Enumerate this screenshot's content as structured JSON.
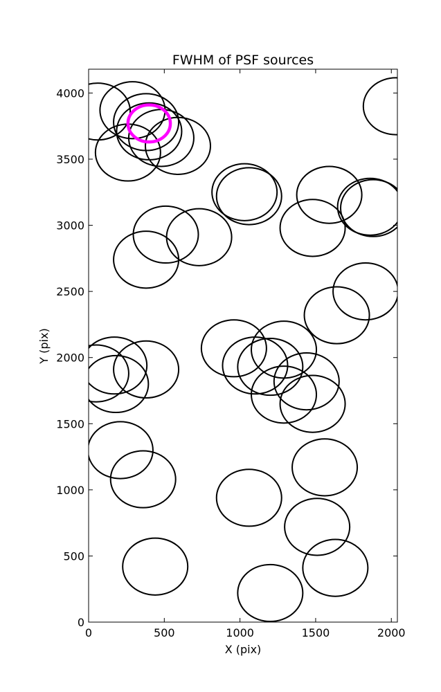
{
  "chart_data": {
    "type": "scatter",
    "title": "FWHM of PSF sources",
    "xlabel": "X (pix)",
    "ylabel": "Y (pix)",
    "xlim": [
      0,
      2040
    ],
    "ylim": [
      0,
      4180
    ],
    "xticks": [
      0,
      500,
      1000,
      1500,
      2000
    ],
    "yticks": [
      0,
      500,
      1000,
      1500,
      2000,
      2500,
      3000,
      3500,
      4000
    ],
    "grid": false,
    "marker": "open circle",
    "circle_color": "#000000",
    "highlight_color": "#ff00ff",
    "circle_radius": 215,
    "sources": [
      {
        "x": 60,
        "y": 3860
      },
      {
        "x": 290,
        "y": 3870
      },
      {
        "x": 380,
        "y": 3780
      },
      {
        "x": 400,
        "y": 3710
      },
      {
        "x": 480,
        "y": 3660
      },
      {
        "x": 590,
        "y": 3600
      },
      {
        "x": 260,
        "y": 3550
      },
      {
        "x": 2030,
        "y": 3900
      },
      {
        "x": 1030,
        "y": 3250
      },
      {
        "x": 1060,
        "y": 3220
      },
      {
        "x": 1590,
        "y": 3230
      },
      {
        "x": 1480,
        "y": 2980
      },
      {
        "x": 1860,
        "y": 3140
      },
      {
        "x": 1880,
        "y": 3130
      },
      {
        "x": 510,
        "y": 2930
      },
      {
        "x": 730,
        "y": 2910
      },
      {
        "x": 380,
        "y": 2740
      },
      {
        "x": 1830,
        "y": 2500
      },
      {
        "x": 1640,
        "y": 2320
      },
      {
        "x": 960,
        "y": 2070
      },
      {
        "x": 1290,
        "y": 2060
      },
      {
        "x": 1100,
        "y": 1940
      },
      {
        "x": 1200,
        "y": 1930
      },
      {
        "x": 1440,
        "y": 1820
      },
      {
        "x": 1290,
        "y": 1720
      },
      {
        "x": 1480,
        "y": 1650
      },
      {
        "x": 170,
        "y": 1940
      },
      {
        "x": 50,
        "y": 1880
      },
      {
        "x": 380,
        "y": 1910
      },
      {
        "x": 180,
        "y": 1800
      },
      {
        "x": 210,
        "y": 1300
      },
      {
        "x": 360,
        "y": 1080
      },
      {
        "x": 1560,
        "y": 1170
      },
      {
        "x": 1060,
        "y": 940
      },
      {
        "x": 1510,
        "y": 720
      },
      {
        "x": 440,
        "y": 420
      },
      {
        "x": 1630,
        "y": 410
      },
      {
        "x": 1200,
        "y": 220
      }
    ],
    "highlight": {
      "x": 400,
      "y": 3770,
      "radius": 140
    }
  }
}
